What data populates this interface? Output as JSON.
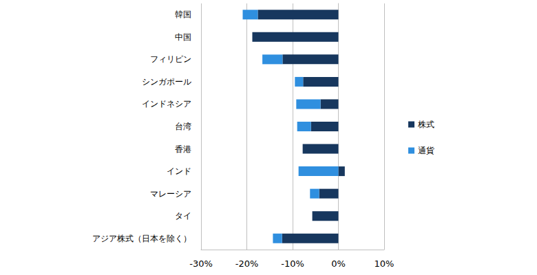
{
  "chart_data": {
    "type": "bar",
    "orientation": "horizontal",
    "stacked": true,
    "grid": true,
    "legend": "right",
    "categories": [
      "韓国",
      "中国",
      "フィリピン",
      "シンガポール",
      "インドネシア",
      "台湾",
      "香港",
      "インド",
      "マレーシア",
      "タイ",
      "アジア株式（日本を除く）"
    ],
    "series": [
      {
        "name": "株式",
        "color": "#17375e",
        "values": [
          -17.6,
          -18.8,
          -12.2,
          -7.7,
          -3.9,
          -6.0,
          -7.8,
          1.4,
          -4.2,
          -5.7,
          -12.3
        ]
      },
      {
        "name": "通貨",
        "color": "#2f8fdf",
        "values": [
          -3.3,
          0,
          -4.4,
          -1.8,
          -5.3,
          -3.0,
          0,
          -8.7,
          -2.0,
          0,
          -2.0
        ]
      }
    ],
    "xlim": [
      -30,
      10
    ],
    "xticks": [
      {
        "value": -30,
        "label": "-30%"
      },
      {
        "value": -20,
        "label": "-20%"
      },
      {
        "value": -10,
        "label": "-10%"
      },
      {
        "value": 0,
        "label": "0%"
      },
      {
        "value": 10,
        "label": "10%"
      }
    ]
  }
}
